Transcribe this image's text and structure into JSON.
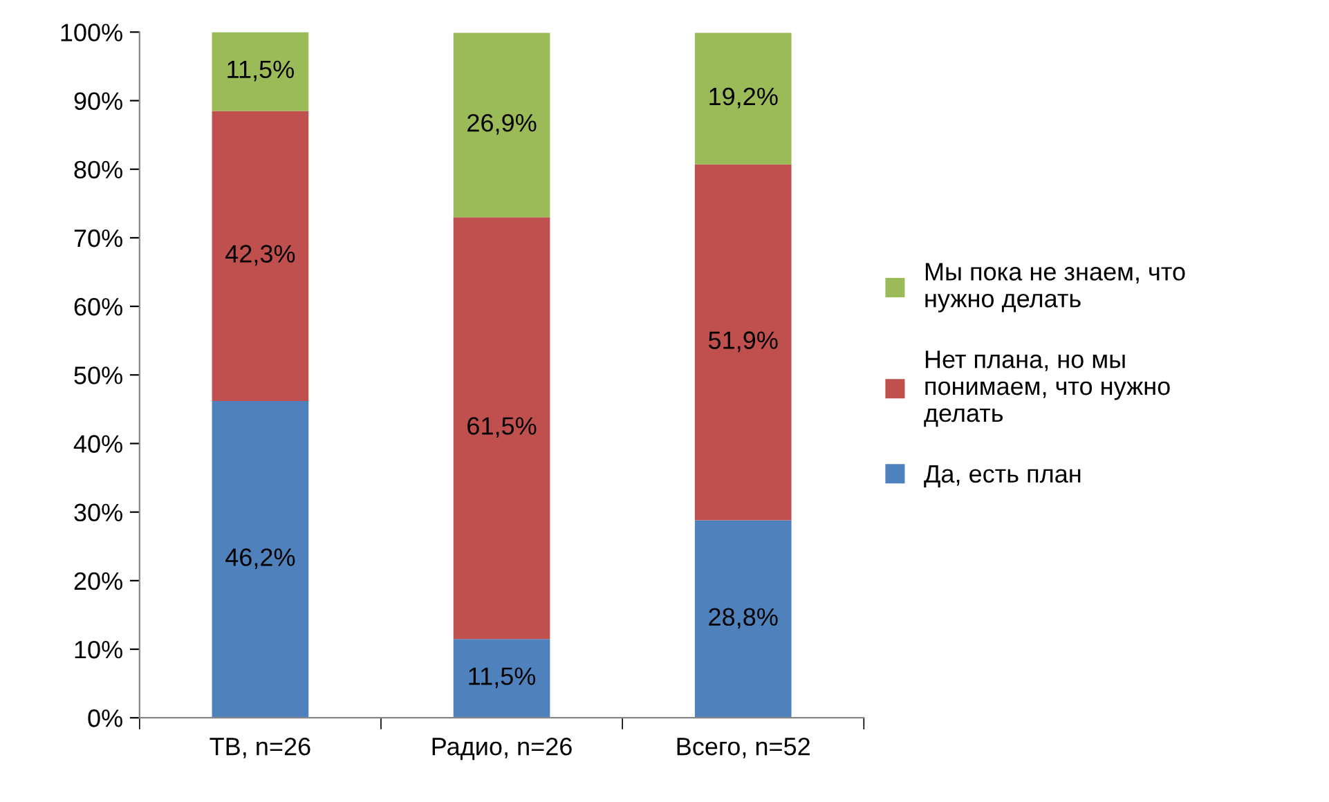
{
  "chart_data": {
    "type": "bar",
    "stacked": true,
    "categories": [
      "ТВ, n=26",
      "Радио, n=26",
      "Всего, n=52"
    ],
    "series": [
      {
        "name": "Да, есть план",
        "color": "#4f81bd",
        "values": [
          46.2,
          11.5,
          28.8
        ],
        "value_labels": [
          "46,2%",
          "11,5%",
          "28,8%"
        ]
      },
      {
        "name": "Нет плана, но мы понимаем, что нужно делать",
        "color": "#c0504d",
        "values": [
          42.3,
          61.5,
          51.9
        ],
        "value_labels": [
          "42,3%",
          "61,5%",
          "51,9%"
        ]
      },
      {
        "name": "Мы пока не знаем, что нужно делать",
        "color": "#9bbb59",
        "values": [
          11.5,
          26.9,
          19.2
        ],
        "value_labels": [
          "11,5%",
          "26,9%",
          "19,2%"
        ]
      }
    ],
    "ylim": [
      0,
      100
    ],
    "yticks": [
      {
        "value": 0,
        "label": "0%"
      },
      {
        "value": 10,
        "label": "10%"
      },
      {
        "value": 20,
        "label": "20%"
      },
      {
        "value": 30,
        "label": "30%"
      },
      {
        "value": 40,
        "label": "40%"
      },
      {
        "value": 50,
        "label": "50%"
      },
      {
        "value": 60,
        "label": "60%"
      },
      {
        "value": 70,
        "label": "70%"
      },
      {
        "value": 80,
        "label": "80%"
      },
      {
        "value": 90,
        "label": "90%"
      },
      {
        "value": 100,
        "label": "100%"
      }
    ],
    "grid": false,
    "legend": "right"
  }
}
